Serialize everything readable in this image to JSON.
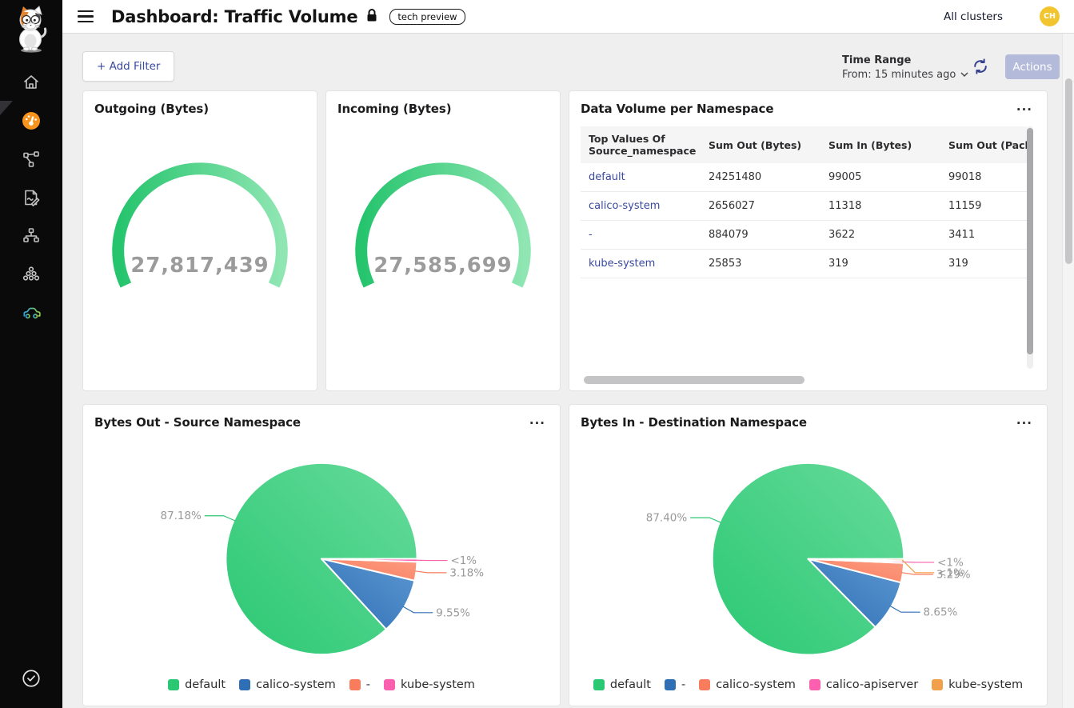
{
  "header": {
    "title": "Dashboard: Traffic Volume",
    "badge": "tech preview",
    "clusters_label": "All clusters",
    "avatar_initials": "CH"
  },
  "toolbar": {
    "add_filter_label": "+ Add Filter",
    "time_range_label": "Time Range",
    "time_range_value": "From: 15 minutes ago",
    "actions_label": "Actions"
  },
  "icons": {
    "more_menu": "...",
    "sidebar_items": [
      "calico-cat-logo",
      "home",
      "dashboard-gauge",
      "network-graph",
      "logs-edit",
      "network-tree",
      "cluster-nodes",
      "whisker-car",
      "verified-check"
    ]
  },
  "colors": {
    "accent-orange": "#f7941e",
    "avatar-bg": "#f2c52e",
    "link-color": "#3a4a9f",
    "actions-bg": "#b4bad9",
    "gauge-value": "#9b9b9b"
  },
  "chart_data": [
    {
      "type": "gauge",
      "title": "Outgoing (Bytes)",
      "value": 27817439,
      "display_value": "27,817,439",
      "arc": {
        "start_deg": 205,
        "end_deg": -25
      },
      "color_start": "#25c46d",
      "color_end": "#8fe6b2"
    },
    {
      "type": "gauge",
      "title": "Incoming (Bytes)",
      "value": 27585699,
      "display_value": "27,585,699",
      "arc": {
        "start_deg": 205,
        "end_deg": -25
      },
      "color_start": "#25c46d",
      "color_end": "#8fe6b2"
    },
    {
      "type": "table",
      "title": "Data Volume per Namespace",
      "columns": [
        "Top Values Of Source_namespace",
        "Sum Out (Bytes)",
        "Sum In (Bytes)",
        "Sum Out (Packets)"
      ],
      "rows": [
        [
          "default",
          "24251480",
          "99005",
          "99018"
        ],
        [
          "calico-system",
          "2656027",
          "11318",
          "11159"
        ],
        [
          "-",
          "884079",
          "3622",
          "3411"
        ],
        [
          "kube-system",
          "25853",
          "319",
          "319"
        ]
      ]
    },
    {
      "type": "pie",
      "title": "Bytes Out - Source Namespace",
      "start_angle_deg": 0,
      "direction": "ccw",
      "series": [
        {
          "name": "default",
          "label": "87.18%",
          "pct": 87.18,
          "color": "#2bc873",
          "color2": "#66db9b"
        },
        {
          "name": "calico-system",
          "label": "9.55%",
          "pct": 9.55,
          "color": "#2f6fb5",
          "color2": "#5b97d1"
        },
        {
          "name": "-",
          "label": "3.18%",
          "pct": 3.18,
          "color": "#f97c5d",
          "color2": "#fc9c81"
        },
        {
          "name": "kube-system",
          "label": "<1%",
          "pct": 0.5,
          "color": "#fb60ae",
          "color2": "#fb60ae"
        }
      ]
    },
    {
      "type": "pie",
      "title": "Bytes In - Destination Namespace",
      "start_angle_deg": 0,
      "direction": "ccw",
      "series": [
        {
          "name": "default",
          "label": "87.40%",
          "pct": 87.4,
          "color": "#2bc873",
          "color2": "#66db9b"
        },
        {
          "name": "-",
          "label": "8.65%",
          "pct": 8.65,
          "color": "#2f6fb5",
          "color2": "#5b97d1"
        },
        {
          "name": "calico-system",
          "label": "3.29%",
          "pct": 3.29,
          "color": "#f97c5d",
          "color2": "#fc9c81"
        },
        {
          "name": "calico-apiserver",
          "label": "<1%",
          "pct": 0.33,
          "color": "#fb60ae",
          "color2": "#fb60ae"
        },
        {
          "name": "kube-system",
          "label": "<1%",
          "pct": 0.33,
          "color": "#f2a14b",
          "color2": "#f2a14b"
        }
      ]
    }
  ]
}
